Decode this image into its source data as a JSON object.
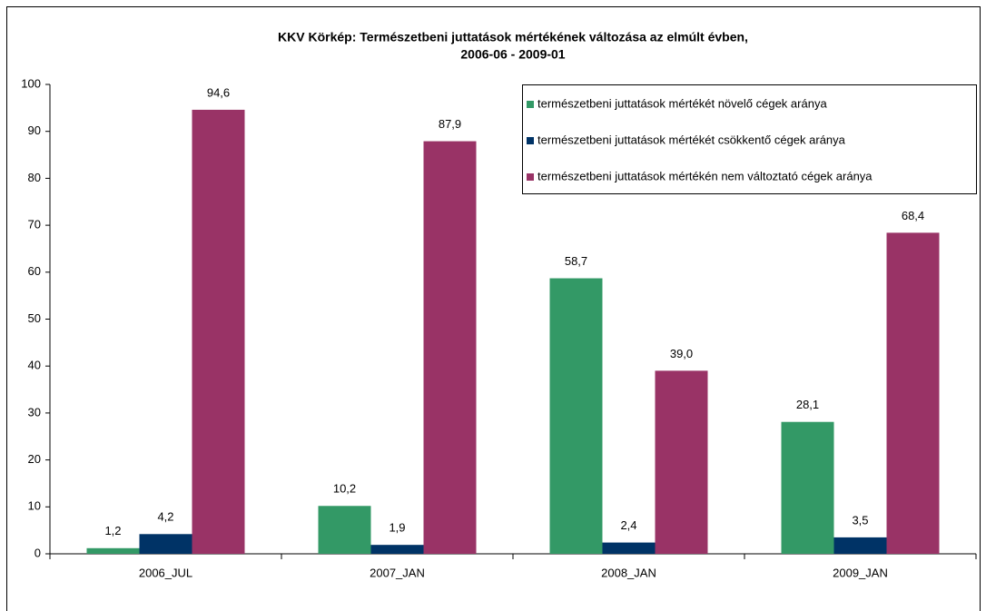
{
  "chart_data": {
    "type": "bar",
    "title": [
      "KKV Körkép: Természetbeni juttatások mértékének változása az elmúlt évben,",
      "2006-06 - 2009-01"
    ],
    "categories": [
      "2006_JUL",
      "2007_JAN",
      "2008_JAN",
      "2009_JAN"
    ],
    "series": [
      {
        "name": "természetbeni juttatások mértékét növelő cégek aránya",
        "color": "#339966",
        "values": [
          1.2,
          10.2,
          58.7,
          28.1
        ],
        "value_labels": [
          "1,2",
          "10,2",
          "58,7",
          "28,1"
        ]
      },
      {
        "name": "természetbeni juttatások mértékét csökkentő cégek aránya",
        "color": "#003366",
        "values": [
          4.2,
          1.9,
          2.4,
          3.5
        ],
        "value_labels": [
          "4,2",
          "1,9",
          "2,4",
          "3,5"
        ]
      },
      {
        "name": "természetbeni juttatások mértékén nem változtató cégek aránya",
        "color": "#993366",
        "values": [
          94.6,
          87.9,
          39.0,
          68.4
        ],
        "value_labels": [
          "94,6",
          "87,9",
          "39,0",
          "68,4"
        ]
      }
    ],
    "ylim": [
      0,
      100
    ],
    "yticks": [
      0,
      10,
      20,
      30,
      40,
      50,
      60,
      70,
      80,
      90,
      100
    ],
    "grid": false,
    "legend": "top-right"
  }
}
